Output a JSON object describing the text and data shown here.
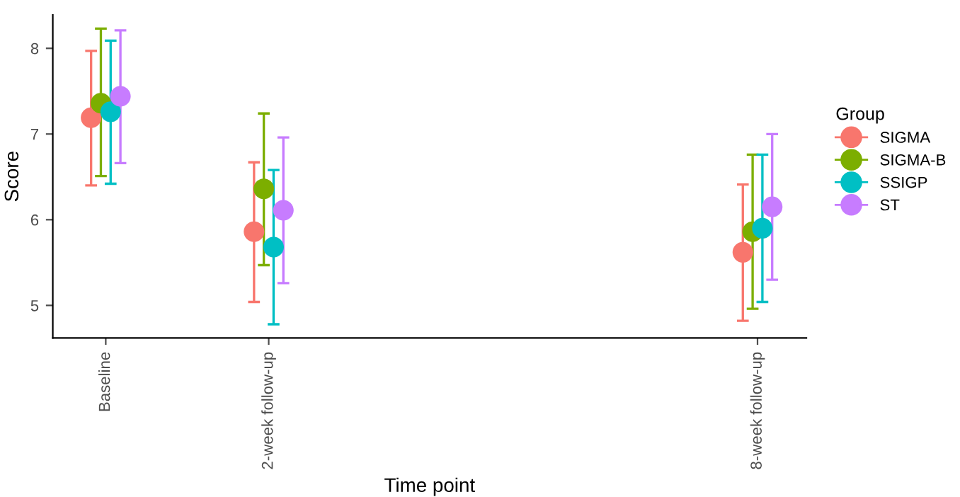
{
  "chart_data": {
    "type": "scatter",
    "xlabel": "Time point",
    "ylabel": "Score",
    "legend_title": "Group",
    "legend": "right",
    "marker": "circle",
    "grid": false,
    "xlim": [
      -0.65,
      8.6
    ],
    "xticks": [
      {
        "value": 0,
        "label": "Baseline"
      },
      {
        "value": 2,
        "label": "2-week follow-up"
      },
      {
        "value": 8,
        "label": "8-week follow-up"
      }
    ],
    "ylim": [
      4.62,
      8.39
    ],
    "yticks": [
      5,
      6,
      7,
      8
    ],
    "series": [
      {
        "name": "SIGMA",
        "color": "#f8766d",
        "x": [
          -0.18,
          1.82,
          7.82
        ],
        "values": [
          7.19,
          5.86,
          5.62
        ],
        "errors": [
          [
            6.4,
            7.97
          ],
          [
            5.04,
            6.67
          ],
          [
            4.82,
            6.41
          ]
        ]
      },
      {
        "name": "SIGMA-B",
        "color": "#7cae00",
        "x": [
          -0.06,
          1.94,
          7.94
        ],
        "values": [
          7.36,
          6.36,
          5.86
        ],
        "errors": [
          [
            6.51,
            8.23
          ],
          [
            5.47,
            7.24
          ],
          [
            4.96,
            6.76
          ]
        ]
      },
      {
        "name": "SSIGP",
        "color": "#00bfc4",
        "x": [
          0.06,
          2.06,
          8.06
        ],
        "values": [
          7.26,
          5.68,
          5.9
        ],
        "errors": [
          [
            6.42,
            8.09
          ],
          [
            4.78,
            6.58
          ],
          [
            5.04,
            6.76
          ]
        ]
      },
      {
        "name": "ST",
        "color": "#c77cff",
        "x": [
          0.18,
          2.18,
          8.18
        ],
        "values": [
          7.44,
          6.11,
          6.15
        ],
        "errors": [
          [
            6.66,
            8.21
          ],
          [
            5.26,
            6.96
          ],
          [
            5.3,
            7.0
          ]
        ]
      }
    ]
  }
}
